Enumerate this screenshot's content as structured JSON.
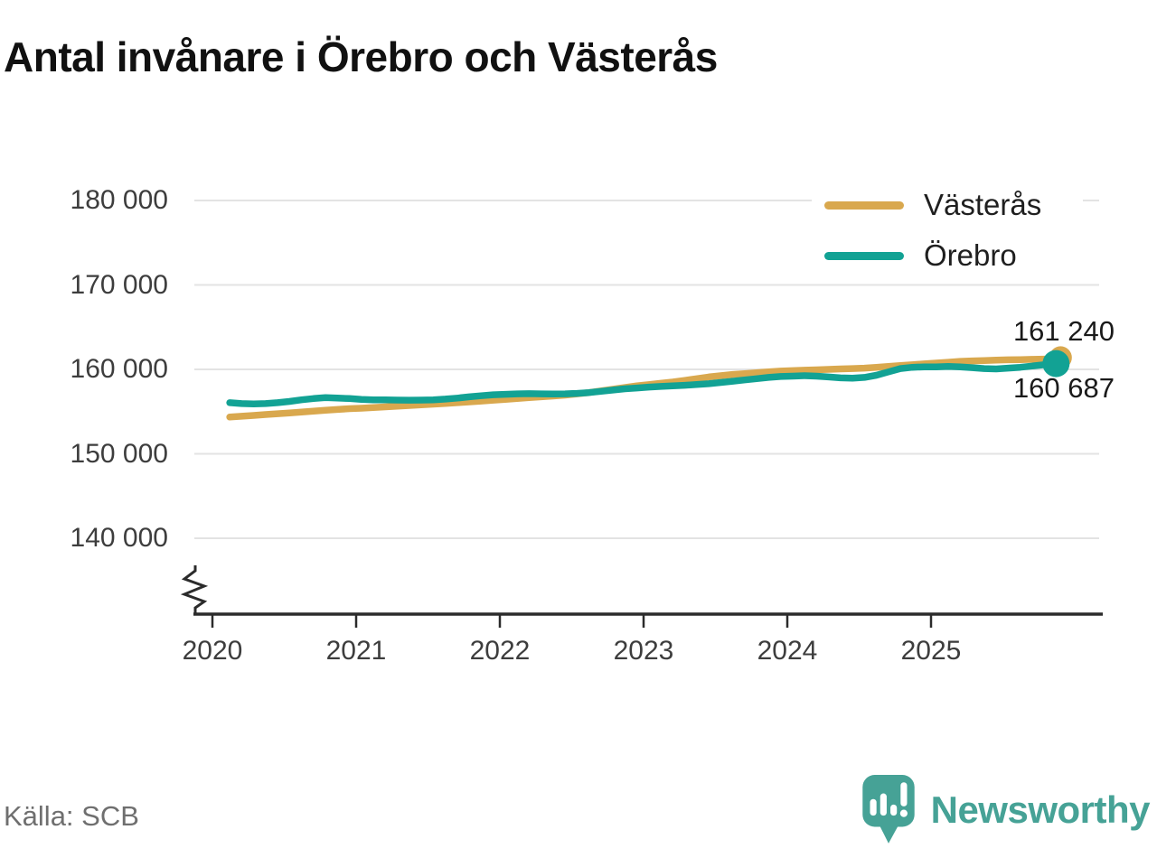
{
  "title": "Antal invånare i Örebro och Västerås",
  "source": "Källa: SCB",
  "branding": {
    "name": "Newsworthy",
    "color": "#46a296"
  },
  "legend": {
    "items": [
      {
        "label": "Västerås",
        "color": "#d9a84e"
      },
      {
        "label": "Örebro",
        "color": "#12a294"
      }
    ]
  },
  "end_labels": {
    "vasteras": "161 240",
    "orebro": "160 687"
  },
  "colors": {
    "vasteras_line": "#d9a84e",
    "orebro_line": "#12a294",
    "grid": "#e3e3e3",
    "axis": "#2b2b2b",
    "logo_teal": "#46a296"
  },
  "chart_data": {
    "type": "line",
    "title": "Antal invånare i Örebro och Västerås",
    "xlabel": "",
    "ylabel": "",
    "grid": "horizontal",
    "legend_position": "top-right-inside",
    "y_axis_break": true,
    "ylim": [
      133000,
      183000
    ],
    "y_ticks": [
      {
        "label": "180 000",
        "value": 180000
      },
      {
        "label": "170 000",
        "value": 170000
      },
      {
        "label": "160 000",
        "value": 160000
      },
      {
        "label": "150 000",
        "value": 150000
      },
      {
        "label": "140 000",
        "value": 140000
      }
    ],
    "x_ticks": [
      {
        "label": "2020",
        "value": 2020
      },
      {
        "label": "2021",
        "value": 2021
      },
      {
        "label": "2022",
        "value": 2022
      },
      {
        "label": "2023",
        "value": 2023
      },
      {
        "label": "2024",
        "value": 2024
      },
      {
        "label": "2025",
        "value": 2025
      }
    ],
    "x_start": 2020.12,
    "x_step_years": 0.083333,
    "series": [
      {
        "name": "Västerås",
        "color": "#d9a84e",
        "final_value": 161240,
        "final_label": "161 240",
        "values": [
          154350,
          154450,
          154550,
          154650,
          154750,
          154850,
          154950,
          155050,
          155150,
          155250,
          155350,
          155400,
          155480,
          155560,
          155640,
          155720,
          155800,
          155880,
          155960,
          156050,
          156150,
          156250,
          156350,
          156450,
          156550,
          156650,
          156750,
          156850,
          156950,
          157100,
          157250,
          157450,
          157650,
          157850,
          158050,
          158200,
          158350,
          158500,
          158700,
          158900,
          159100,
          159250,
          159400,
          159500,
          159600,
          159700,
          159800,
          159850,
          159900,
          159950,
          160000,
          160050,
          160100,
          160150,
          160250,
          160350,
          160450,
          160550,
          160650,
          160750,
          160850,
          160950,
          161000,
          161050,
          161100,
          161130,
          161160,
          161190,
          161220,
          161240
        ]
      },
      {
        "name": "Örebro",
        "color": "#12a294",
        "final_value": 160687,
        "final_label": "160 687",
        "values": [
          156050,
          155950,
          155900,
          155950,
          156050,
          156200,
          156400,
          156550,
          156650,
          156600,
          156550,
          156450,
          156400,
          156380,
          156360,
          156350,
          156360,
          156400,
          156480,
          156600,
          156750,
          156880,
          157000,
          157050,
          157100,
          157120,
          157100,
          157080,
          157100,
          157150,
          157250,
          157400,
          157550,
          157700,
          157800,
          157900,
          157980,
          158050,
          158120,
          158200,
          158300,
          158450,
          158600,
          158750,
          158900,
          159050,
          159150,
          159200,
          159250,
          159200,
          159100,
          159000,
          158950,
          159050,
          159300,
          159700,
          160100,
          160250,
          160300,
          160300,
          160350,
          160300,
          160200,
          160100,
          160050,
          160150,
          160250,
          160400,
          160550,
          160687
        ]
      }
    ]
  }
}
